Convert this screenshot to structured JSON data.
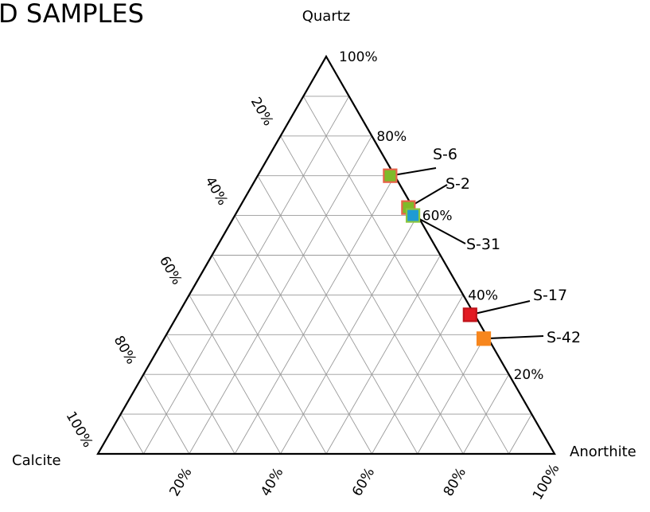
{
  "chart_data": {
    "type": "ternary-scatter",
    "title": "D SAMPLES",
    "vertices": {
      "top": "Quartz",
      "left": "Calcite",
      "right": "Anorthite"
    },
    "quartz_ticks": [
      "100%",
      "80%",
      "60%",
      "40%",
      "20%"
    ],
    "calcite_ticks": [
      "20%",
      "40%",
      "60%",
      "80%",
      "100%"
    ],
    "anorthite_ticks": [
      "20%",
      "40%",
      "60%",
      "80%",
      "100%"
    ],
    "grid": true,
    "points": [
      {
        "label": "S-6",
        "quartz": 0.7,
        "anorthite": 0.29,
        "calcite": 0.01,
        "fill": "#7fba2a",
        "stroke": "#e8624a"
      },
      {
        "label": "S-2",
        "quartz": 0.62,
        "anorthite": 0.37,
        "calcite": 0.01,
        "fill": "#7fba2a",
        "stroke": "#e8624a"
      },
      {
        "label": "S-31",
        "quartz": 0.6,
        "anorthite": 0.39,
        "calcite": 0.01,
        "fill": "#1f9bd4",
        "stroke": "#8cc63f"
      },
      {
        "label": "S-17",
        "quartz": 0.35,
        "anorthite": 0.64,
        "calcite": 0.01,
        "fill": "#e31b23",
        "stroke": "#c0141b"
      },
      {
        "label": "S-42",
        "quartz": 0.29,
        "anorthite": 0.7,
        "calcite": 0.01,
        "fill": "#f7861d",
        "stroke": "#f7861d"
      }
    ]
  }
}
